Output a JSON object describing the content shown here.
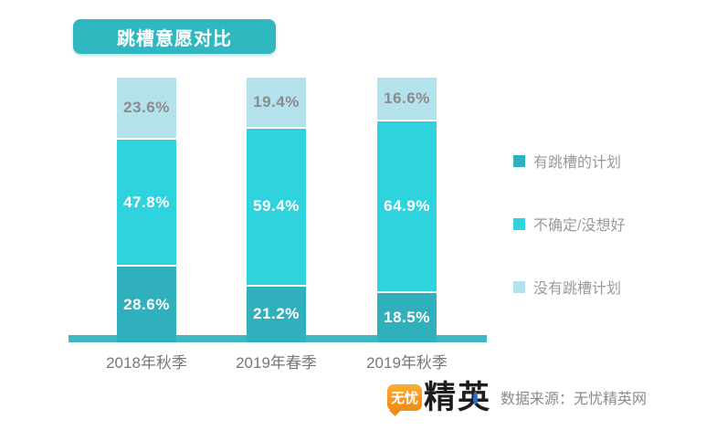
{
  "title": {
    "label": "跳槽意愿对比"
  },
  "chart_data": {
    "type": "bar",
    "stacked": true,
    "title": "跳槽意愿对比",
    "categories": [
      "2018年秋季",
      "2019年春季",
      "2019年秋季"
    ],
    "series": [
      {
        "name": "有跳槽的计划",
        "values": [
          28.6,
          21.2,
          18.5
        ],
        "color": "#2FB0BC",
        "label_color": "#FFFFFF"
      },
      {
        "name": "不确定/没想好",
        "values": [
          47.8,
          59.4,
          64.9
        ],
        "color": "#2FD3DE",
        "label_color": "#FFFFFF"
      },
      {
        "name": "没有跳槽计划",
        "values": [
          23.6,
          19.4,
          16.6
        ],
        "color": "#B4E2EC",
        "label_color": "#8B8B8B"
      }
    ],
    "value_suffix": "%",
    "ylim": [
      0,
      100
    ],
    "grid": false,
    "legend_position": "right",
    "xlabel": "",
    "ylabel": ""
  },
  "colors": {
    "badge": "#30B8C1",
    "axis_line": "#3FB8C1",
    "logo_orange": "#F28A12",
    "logo_blue": "#2E6FC2"
  },
  "footer": {
    "logo_badge": "无忧",
    "logo_name": "精英",
    "source": "数据来源：无忧精英网"
  }
}
